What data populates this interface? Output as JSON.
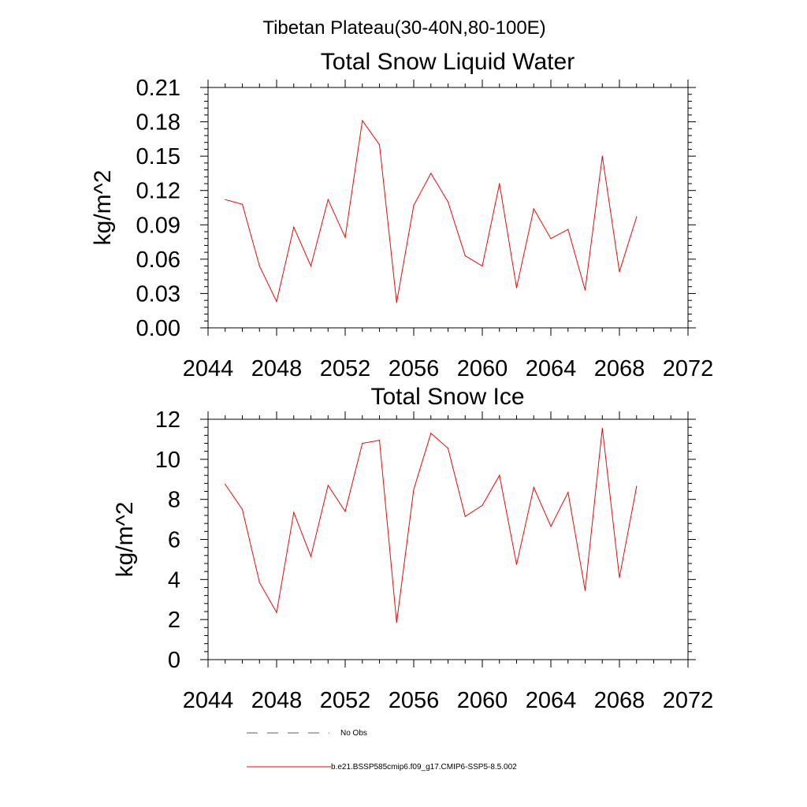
{
  "figure_title": "Tibetan Plateau(30-40N,80-100E)",
  "legend": {
    "entries": [
      {
        "label": "No Obs",
        "color": "#5a5a8c",
        "dash": true
      },
      {
        "label": "b.e21.BSSP585cmip6.f09_g17.CMIP6-SSP5-8.5.002",
        "color": "#ff0000",
        "dash": false
      }
    ]
  },
  "chart_data": [
    {
      "type": "line",
      "title": "Total Snow Liquid Water",
      "ylabel": "kg/m^2",
      "xlabel": "",
      "xlim": [
        2044,
        2072
      ],
      "ylim": [
        0,
        0.21
      ],
      "xticks": [
        2044,
        2048,
        2052,
        2056,
        2060,
        2064,
        2068,
        2072
      ],
      "yticks": [
        "0.00",
        "0.03",
        "0.06",
        "0.09",
        "0.12",
        "0.15",
        "0.18",
        "0.21"
      ],
      "grid": false,
      "series": [
        {
          "name": "b.e21.BSSP585cmip6.f09_g17.CMIP6-SSP5-8.5.002",
          "color": "#ff0000",
          "x": [
            2045,
            2046,
            2047,
            2048,
            2049,
            2050,
            2051,
            2052,
            2053,
            2054,
            2055,
            2056,
            2057,
            2058,
            2059,
            2060,
            2061,
            2062,
            2063,
            2064,
            2065,
            2066,
            2067,
            2068,
            2069
          ],
          "y": [
            0.112,
            0.108,
            0.054,
            0.023,
            0.088,
            0.054,
            0.112,
            0.079,
            0.181,
            0.16,
            0.022,
            0.107,
            0.135,
            0.11,
            0.063,
            0.054,
            0.126,
            0.035,
            0.104,
            0.078,
            0.086,
            0.033,
            0.15,
            0.049,
            0.097
          ]
        }
      ]
    },
    {
      "type": "line",
      "title": "Total Snow Ice",
      "ylabel": "kg/m^2",
      "xlabel": "",
      "xlim": [
        2044,
        2072
      ],
      "ylim": [
        0,
        12
      ],
      "xticks": [
        2044,
        2048,
        2052,
        2056,
        2060,
        2064,
        2068,
        2072
      ],
      "yticks": [
        "0",
        "2",
        "4",
        "6",
        "8",
        "10",
        "12"
      ],
      "grid": false,
      "series": [
        {
          "name": "b.e21.BSSP585cmip6.f09_g17.CMIP6-SSP5-8.5.002",
          "color": "#ff0000",
          "x": [
            2045,
            2046,
            2047,
            2048,
            2049,
            2050,
            2051,
            2052,
            2053,
            2054,
            2055,
            2056,
            2057,
            2058,
            2059,
            2060,
            2061,
            2062,
            2063,
            2064,
            2065,
            2066,
            2067,
            2068,
            2069
          ],
          "y": [
            8.75,
            7.5,
            3.85,
            2.35,
            7.35,
            5.15,
            8.7,
            7.4,
            10.8,
            10.95,
            1.85,
            8.5,
            11.3,
            10.55,
            7.15,
            7.7,
            9.2,
            4.75,
            8.6,
            6.65,
            8.35,
            3.45,
            11.55,
            4.1,
            8.65
          ]
        }
      ]
    }
  ]
}
